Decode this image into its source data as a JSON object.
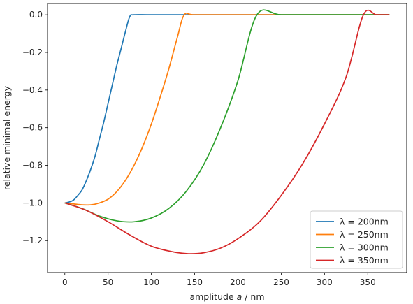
{
  "chart_data": {
    "type": "line",
    "xlabel_prefix": "amplitude ",
    "xlabel_var": "a",
    "xlabel_suffix": " / nm",
    "ylabel": "relative minimal energy",
    "xlim": [
      -20,
      395
    ],
    "ylim": [
      -1.37,
      0.06
    ],
    "x_ticks": [
      0,
      50,
      100,
      150,
      200,
      250,
      300,
      350
    ],
    "x_tick_labels": [
      "0",
      "50",
      "100",
      "150",
      "200",
      "250",
      "300",
      "350"
    ],
    "y_ticks": [
      0.0,
      -0.2,
      -0.4,
      -0.6,
      -0.8,
      -1.0,
      -1.2
    ],
    "y_tick_labels": [
      "0.0",
      "−0.2",
      "−0.4",
      "−0.6",
      "−0.8",
      "−1.0",
      "−1.2"
    ],
    "grid": false,
    "legend_position": "lower-right",
    "series": [
      {
        "name": "λ = 200nm",
        "color": "#1f77b4",
        "x": [
          0,
          5,
          10,
          15,
          20,
          25,
          30,
          35,
          40,
          45,
          50,
          55,
          60,
          65,
          70,
          75,
          80,
          100,
          150,
          200,
          250,
          300,
          350,
          375
        ],
        "y": [
          -1.0,
          -0.995,
          -0.985,
          -0.96,
          -0.93,
          -0.88,
          -0.82,
          -0.75,
          -0.66,
          -0.57,
          -0.47,
          -0.37,
          -0.27,
          -0.18,
          -0.09,
          -0.01,
          0.0,
          0.0,
          0.0,
          0.0,
          0.0,
          0.0,
          0.0,
          0.0
        ]
      },
      {
        "name": "λ = 250nm",
        "color": "#ff7f0e",
        "x": [
          0,
          10,
          20,
          30,
          40,
          50,
          60,
          70,
          80,
          90,
          100,
          110,
          120,
          130,
          138,
          150,
          200,
          250,
          300,
          350,
          375
        ],
        "y": [
          -1.0,
          -1.005,
          -1.01,
          -1.01,
          -1.0,
          -0.98,
          -0.94,
          -0.88,
          -0.8,
          -0.7,
          -0.58,
          -0.44,
          -0.29,
          -0.12,
          0.0,
          0.0,
          0.0,
          0.0,
          0.0,
          0.0,
          0.0
        ]
      },
      {
        "name": "λ = 300nm",
        "color": "#2ca02c",
        "x": [
          0,
          20,
          40,
          60,
          80,
          100,
          120,
          140,
          160,
          180,
          200,
          222,
          250,
          300,
          350,
          375
        ],
        "y": [
          -1.0,
          -1.03,
          -1.07,
          -1.095,
          -1.1,
          -1.08,
          -1.03,
          -0.94,
          -0.8,
          -0.6,
          -0.35,
          0.0,
          0.0,
          0.0,
          0.0,
          0.0
        ]
      },
      {
        "name": "λ = 350nm",
        "color": "#d62728",
        "x": [
          0,
          25,
          50,
          75,
          100,
          125,
          143,
          160,
          180,
          200,
          225,
          250,
          275,
          300,
          325,
          345,
          360,
          375
        ],
        "y": [
          -1.0,
          -1.04,
          -1.1,
          -1.17,
          -1.23,
          -1.26,
          -1.27,
          -1.265,
          -1.24,
          -1.19,
          -1.1,
          -0.96,
          -0.79,
          -0.58,
          -0.33,
          0.0,
          0.0,
          0.0
        ]
      }
    ]
  }
}
